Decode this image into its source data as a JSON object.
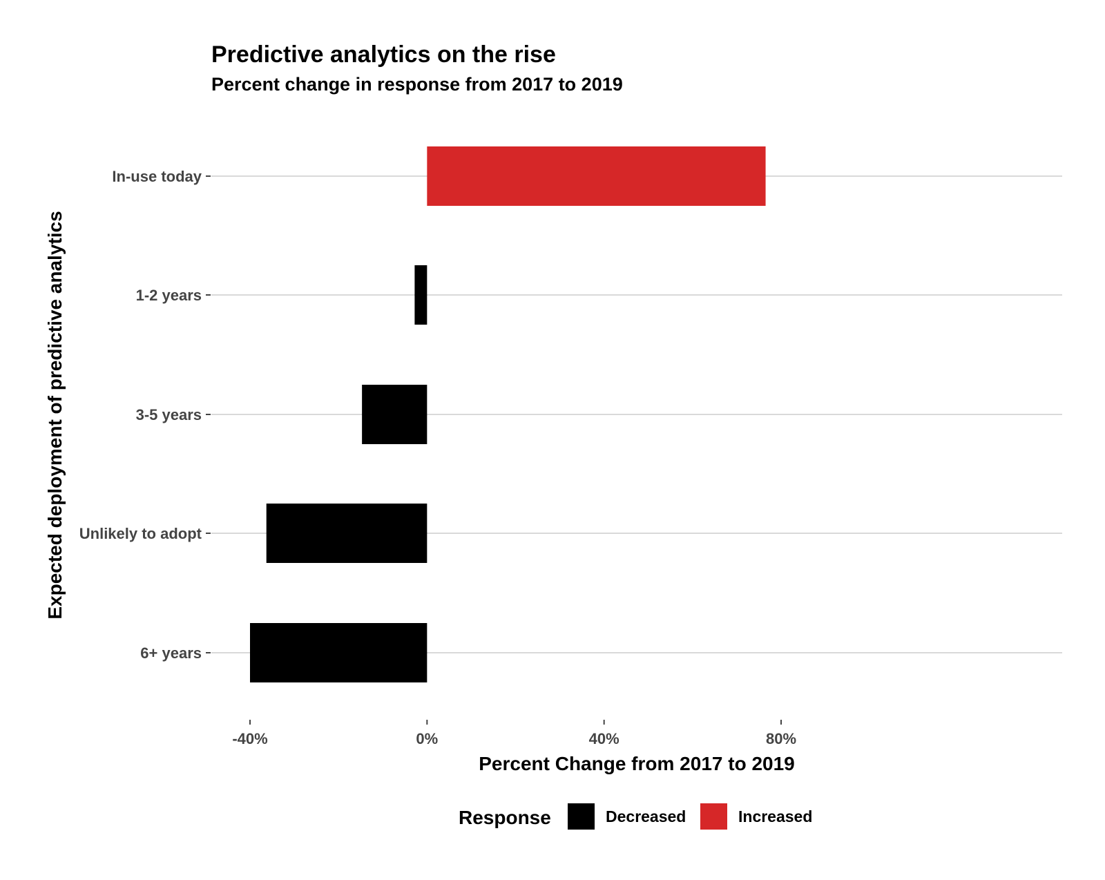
{
  "chart_data": {
    "type": "bar",
    "orientation": "horizontal",
    "title": "Predictive analytics on the rise",
    "subtitle": "Percent change in response from 2017 to 2019",
    "xlabel": "Percent Change from 2017 to 2019",
    "ylabel": "Expected deployment of predictive analytics",
    "xlim": [
      -40,
      80
    ],
    "x_ticks": [
      -40,
      0,
      40,
      80
    ],
    "x_tick_labels": [
      "-40%",
      "0%",
      "40%",
      "80%"
    ],
    "categories": [
      "In-use today",
      "1-2 years",
      "3-5 years",
      "Unlikely to adopt",
      "6+ years"
    ],
    "values": [
      76.5,
      -2.8,
      -14.7,
      -36.3,
      -40
    ],
    "response": [
      "Increased",
      "Decreased",
      "Decreased",
      "Decreased",
      "Decreased"
    ],
    "grid": "horizontal major",
    "legend": {
      "title": "Response",
      "position": "bottom",
      "entries": [
        {
          "label": "Decreased",
          "color": "#000000"
        },
        {
          "label": "Increased",
          "color": "#d62728"
        }
      ]
    },
    "colors": {
      "Decreased": "#000000",
      "Increased": "#d62728",
      "grid": "#d9d9d9"
    }
  }
}
